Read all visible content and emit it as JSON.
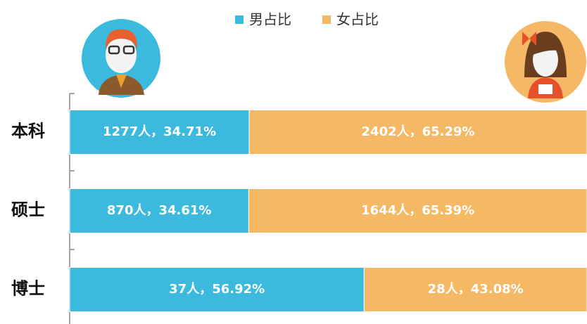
{
  "chart_data": {
    "type": "bar",
    "orientation": "horizontal",
    "stacked": true,
    "categories": [
      "本科",
      "硕士",
      "博士"
    ],
    "series": [
      {
        "name": "男占比",
        "color": "#3bbade",
        "values": [
          34.71,
          34.61,
          56.92
        ],
        "value_labels": [
          "1277人，34.71%",
          "870人，34.61%",
          "37人，56.92%"
        ]
      },
      {
        "name": "女占比",
        "color": "#f5b865",
        "values": [
          65.29,
          65.39,
          43.08
        ],
        "value_labels": [
          "2402人，65.29%",
          "1644人，65.39%",
          "28人，43.08%"
        ]
      }
    ],
    "xlim": [
      0,
      100
    ],
    "legend": "top"
  }
}
